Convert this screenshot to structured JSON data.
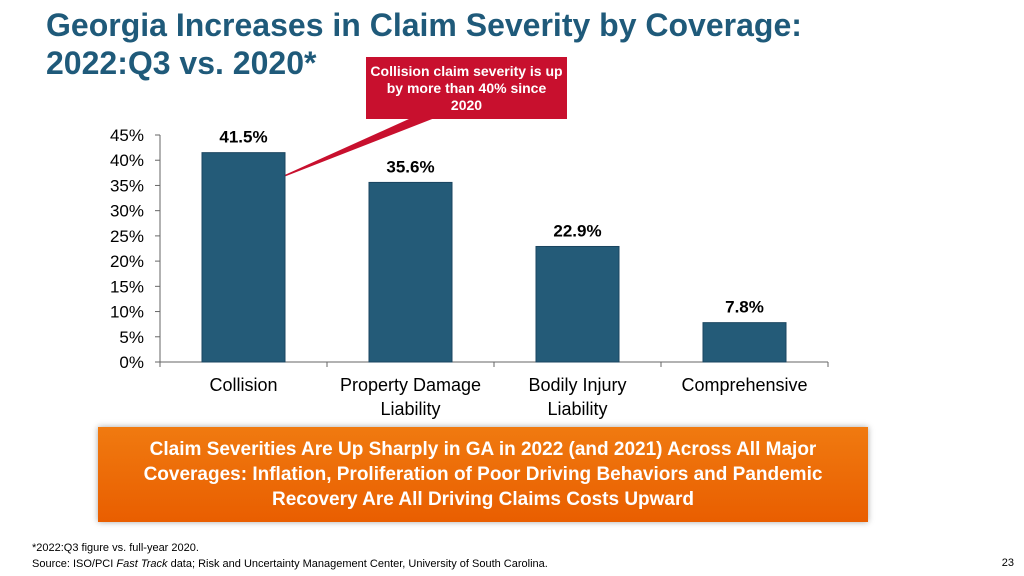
{
  "title": {
    "line1": "Georgia Increases in Claim Severity by Coverage:",
    "line2": "2022:Q3 vs. 2020*"
  },
  "callout": {
    "text": "Collision claim severity is up by more than 40% since 2020"
  },
  "chart_data": {
    "type": "bar",
    "title": "",
    "xlabel": "",
    "ylabel": "",
    "categories": [
      [
        "Collision"
      ],
      [
        "Property Damage",
        "Liability"
      ],
      [
        "Bodily Injury",
        "Liability"
      ],
      [
        "Comprehensive"
      ]
    ],
    "values": [
      41.5,
      35.6,
      22.9,
      7.8
    ],
    "value_labels": [
      "41.5%",
      "35.6%",
      "22.9%",
      "7.8%"
    ],
    "yticks": [
      "0%",
      "5%",
      "10%",
      "15%",
      "20%",
      "25%",
      "30%",
      "35%",
      "40%",
      "45%"
    ],
    "ylim": [
      0,
      45
    ],
    "ystep": 5,
    "grid": false,
    "bar_color": "#245b78"
  },
  "banner": {
    "text": "Claim Severities Are Up Sharply in GA in 2022 (and 2021) Across All Major Coverages: Inflation, Proliferation of Poor Driving Behaviors and Pandemic Recovery Are All Driving Claims Costs Upward"
  },
  "footnote": {
    "note": "*2022:Q3 figure vs. full-year 2020.",
    "source_prefix": "Source: ISO/PCI ",
    "source_italic": "Fast Track",
    "source_suffix": " data; Risk and Uncertainty Management Center, University of South Carolina."
  },
  "page_number": "23",
  "colors": {
    "title": "#1f5a7a",
    "callout": "#c8102e",
    "banner": "#ef6c00"
  }
}
